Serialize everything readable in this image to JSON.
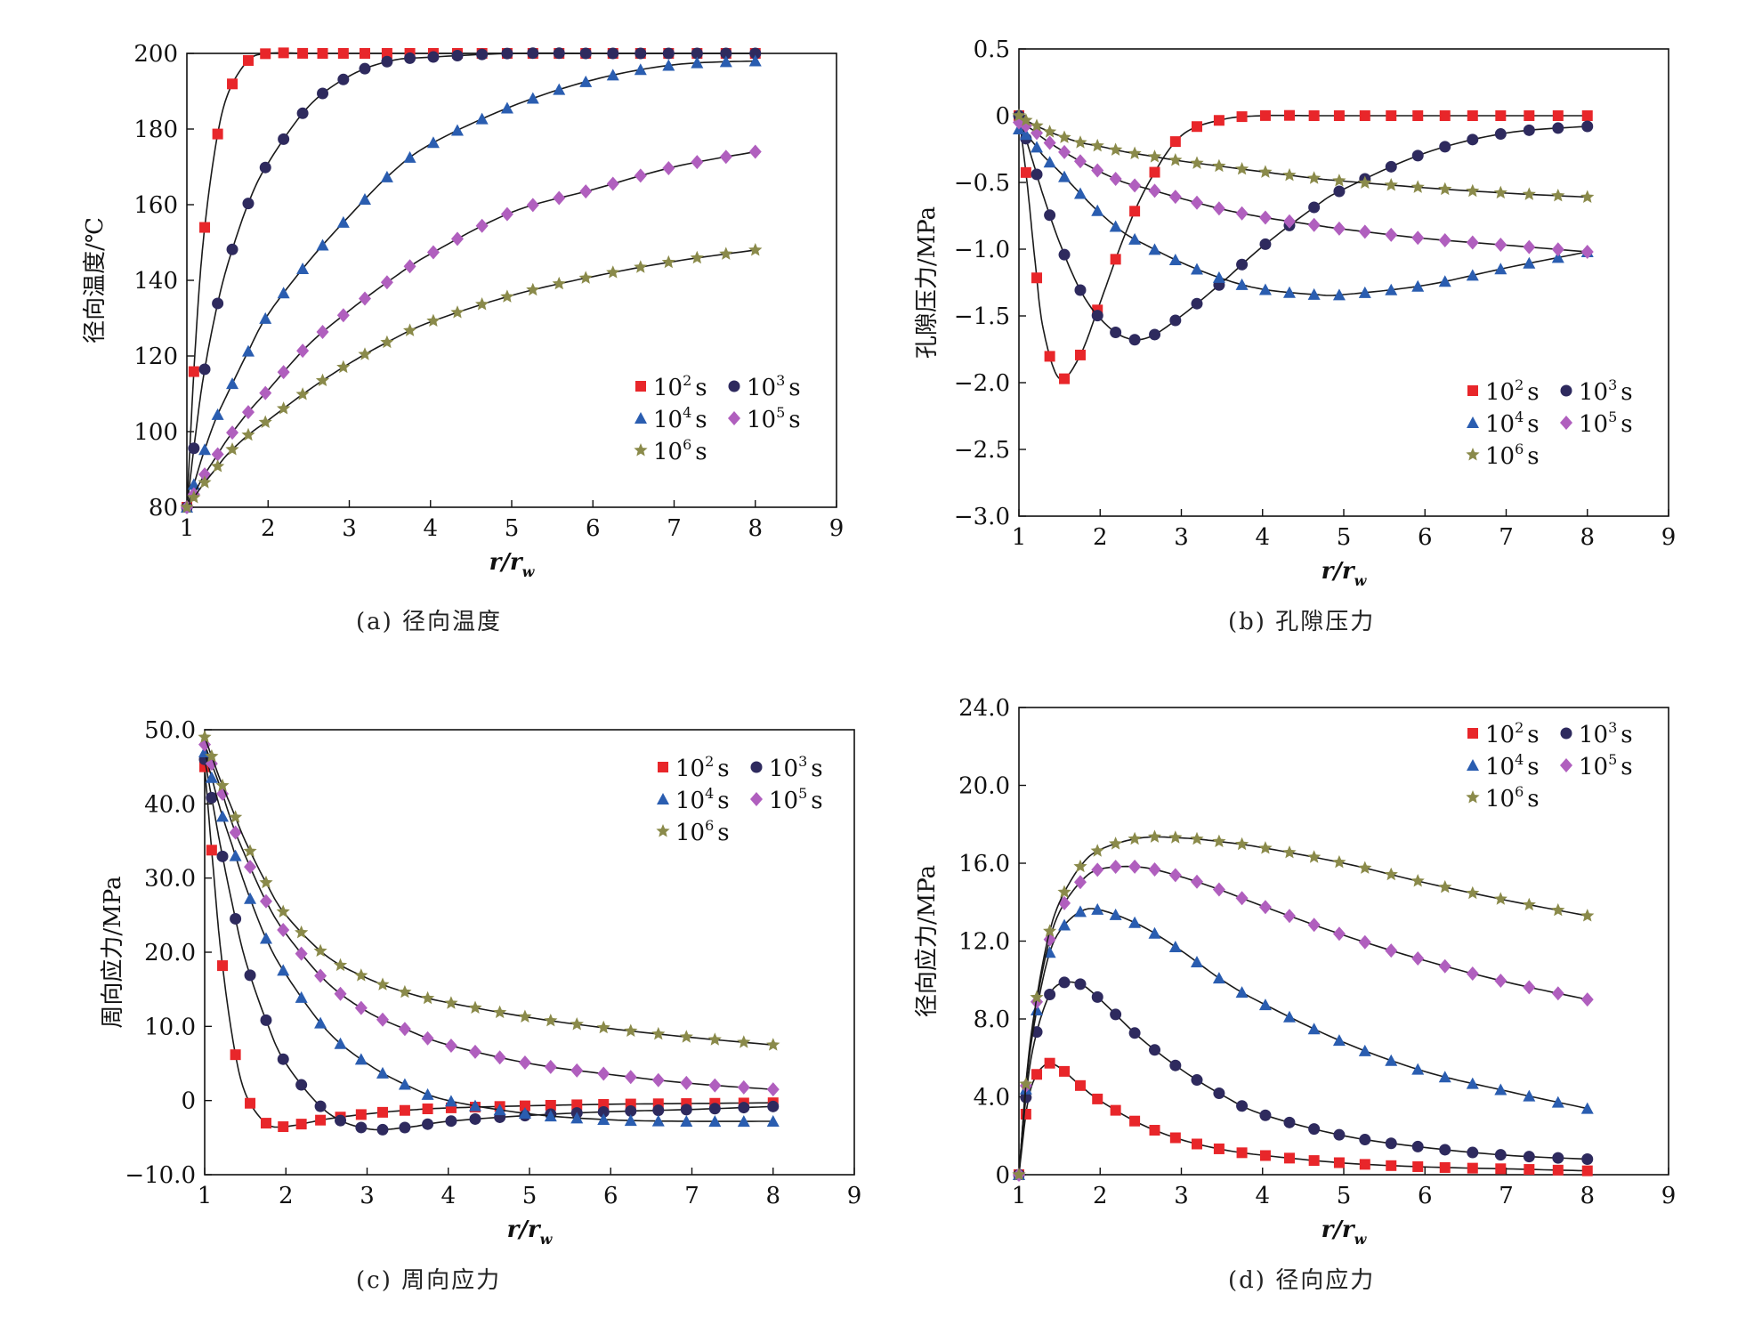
{
  "captions": {
    "a": "(a) 径向温度",
    "b": "(b) 孔隙压力",
    "c": "(c) 周向应力",
    "d": "(d) 径向应力"
  },
  "legend_labels": {
    "s1": {
      "base": "10",
      "sup": "2",
      "unit": "s"
    },
    "s2": {
      "base": "10",
      "sup": "3",
      "unit": "s"
    },
    "s3": {
      "base": "10",
      "sup": "4",
      "unit": "s"
    },
    "s4": {
      "base": "10",
      "sup": "5",
      "unit": "s"
    },
    "s5": {
      "base": "10",
      "sup": "6",
      "unit": "s"
    }
  },
  "series_style": [
    {
      "color": "#e8262a",
      "marker": "square"
    },
    {
      "color": "#2e2a5e",
      "marker": "circle"
    },
    {
      "color": "#2a5db0",
      "marker": "triangle"
    },
    {
      "color": "#b05fbe",
      "marker": "diamond"
    },
    {
      "color": "#8a8a4a",
      "marker": "star"
    }
  ],
  "chart_data": [
    {
      "id": "a",
      "type": "line",
      "xlabel": "r/r_w",
      "ylabel": "径向温度/℃",
      "xlim": [
        1,
        9
      ],
      "ylim": [
        80,
        200
      ],
      "xticks": [
        "1",
        "2",
        "3",
        "4",
        "5",
        "6",
        "7",
        "8",
        "9"
      ],
      "yticks": [
        "80",
        "100",
        "120",
        "140",
        "160",
        "180",
        "200"
      ],
      "legend_position": "bottom-right",
      "x": [
        1.0,
        1.1,
        1.2,
        1.35,
        1.5,
        1.75,
        2.0,
        2.5,
        3.0,
        3.5,
        4.0,
        5.0,
        6.0,
        7.0,
        8.0
      ],
      "series": [
        {
          "name": "10^2 s",
          "values": [
            80,
            121,
            150,
            175,
            189,
            198,
            200,
            200,
            200,
            200,
            200,
            200,
            200,
            200,
            200
          ]
        },
        {
          "name": "10^3 s",
          "values": [
            80,
            98,
            114,
            131,
            144,
            160,
            171,
            186,
            194,
            198,
            199,
            200,
            200,
            200,
            200
          ]
        },
        {
          "name": "10^4 s",
          "values": [
            80,
            87,
            94,
            103,
            110,
            121,
            131,
            145,
            157,
            168,
            176,
            186,
            193,
            197,
            198
          ]
        },
        {
          "name": "10^5 s",
          "values": [
            80,
            84,
            88,
            93,
            98,
            105,
            111,
            123,
            132,
            140,
            147,
            158,
            164,
            170,
            174
          ]
        },
        {
          "name": "10^6 s",
          "values": [
            80,
            83,
            86,
            90,
            94,
            99,
            103,
            111,
            118,
            124,
            129,
            136,
            141,
            145,
            148
          ]
        }
      ]
    },
    {
      "id": "b",
      "type": "line",
      "xlabel": "r/r_w",
      "ylabel": "孔隙压力/MPa",
      "xlim": [
        1,
        9
      ],
      "ylim": [
        -3.0,
        0.5
      ],
      "xticks": [
        "1",
        "2",
        "3",
        "4",
        "5",
        "6",
        "7",
        "8",
        "9"
      ],
      "yticks": [
        "−3.0",
        "−2.5",
        "−2.0",
        "−1.5",
        "−1.0",
        "−0.5",
        "0",
        "0.5"
      ],
      "legend_position": "bottom-right",
      "x": [
        1.0,
        1.1,
        1.2,
        1.3,
        1.5,
        1.75,
        2.0,
        2.3,
        2.6,
        3.0,
        3.5,
        4.0,
        4.65,
        5.0,
        6.0,
        7.0,
        8.0
      ],
      "series": [
        {
          "name": "10^2 s",
          "values": [
            0.0,
            -0.5,
            -1.1,
            -1.6,
            -1.97,
            -1.8,
            -1.4,
            -0.9,
            -0.5,
            -0.15,
            -0.03,
            0,
            0,
            0,
            0,
            0,
            0
          ]
        },
        {
          "name": "10^3 s",
          "values": [
            0.0,
            -0.2,
            -0.4,
            -0.6,
            -0.95,
            -1.3,
            -1.52,
            -1.66,
            -1.66,
            -1.5,
            -1.25,
            -0.98,
            -0.68,
            -0.55,
            -0.28,
            -0.13,
            -0.08
          ]
        },
        {
          "name": "10^4 s",
          "values": [
            -0.1,
            -0.15,
            -0.22,
            -0.3,
            -0.42,
            -0.58,
            -0.73,
            -0.88,
            -0.98,
            -1.1,
            -1.22,
            -1.3,
            -1.34,
            -1.34,
            -1.27,
            -1.14,
            -1.02
          ]
        },
        {
          "name": "10^5 s",
          "values": [
            -0.05,
            -0.08,
            -0.12,
            -0.17,
            -0.25,
            -0.34,
            -0.42,
            -0.5,
            -0.55,
            -0.62,
            -0.7,
            -0.76,
            -0.82,
            -0.85,
            -0.92,
            -0.97,
            -1.02
          ]
        },
        {
          "name": "10^6 s",
          "values": [
            0.0,
            -0.04,
            -0.07,
            -0.1,
            -0.15,
            -0.2,
            -0.23,
            -0.27,
            -0.3,
            -0.34,
            -0.38,
            -0.42,
            -0.47,
            -0.49,
            -0.54,
            -0.58,
            -0.61
          ]
        }
      ]
    },
    {
      "id": "c",
      "type": "line",
      "xlabel": "r/r_w",
      "ylabel": "周向应力/MPa",
      "xlim": [
        1,
        9
      ],
      "ylim": [
        -10,
        50
      ],
      "xticks": [
        "1",
        "2",
        "3",
        "4",
        "5",
        "6",
        "7",
        "8",
        "9"
      ],
      "yticks": [
        "−10.0",
        "0",
        "10.0",
        "20.0",
        "30.0",
        "40.0",
        "50.0"
      ],
      "legend_position": "top-right",
      "x": [
        1.0,
        1.1,
        1.2,
        1.35,
        1.5,
        1.75,
        2.0,
        2.5,
        3.0,
        3.5,
        4.0,
        5.0,
        6.0,
        7.0,
        8.0
      ],
      "series": [
        {
          "name": "10^2 s",
          "values": [
            45,
            32,
            20,
            8,
            1,
            -3,
            -3.5,
            -2.5,
            -1.8,
            -1.3,
            -1.0,
            -0.7,
            -0.5,
            -0.4,
            -0.3
          ]
        },
        {
          "name": "10^3 s",
          "values": [
            46,
            40,
            34,
            26,
            19,
            11,
            5,
            -1.5,
            -3.8,
            -3.6,
            -2.8,
            -2.0,
            -1.5,
            -1.2,
            -0.8
          ]
        },
        {
          "name": "10^4 s",
          "values": [
            47,
            43,
            39,
            34,
            29,
            22,
            17,
            9.5,
            5,
            2,
            0,
            -1.8,
            -2.6,
            -2.8,
            -2.8
          ]
        },
        {
          "name": "10^5 s",
          "values": [
            48,
            45,
            42,
            37,
            33,
            27,
            22.5,
            16,
            12,
            9.5,
            7.5,
            5,
            3.5,
            2.3,
            1.5
          ]
        },
        {
          "name": "10^6 s",
          "values": [
            49,
            46,
            43,
            39,
            35,
            29.5,
            25,
            19.5,
            16.5,
            14.5,
            13.2,
            11.2,
            9.7,
            8.5,
            7.5
          ]
        }
      ]
    },
    {
      "id": "d",
      "type": "line",
      "xlabel": "r/r_w",
      "ylabel": "径向应力/MPa",
      "xlim": [
        1,
        9
      ],
      "ylim": [
        0,
        24
      ],
      "xticks": [
        "1",
        "2",
        "3",
        "4",
        "5",
        "6",
        "7",
        "8",
        "9"
      ],
      "yticks": [
        "0",
        "4.0",
        "8.0",
        "12.0",
        "16.0",
        "20.0",
        "24.0"
      ],
      "legend_position": "top-right",
      "x": [
        1.0,
        1.1,
        1.2,
        1.35,
        1.5,
        1.75,
        2.0,
        2.5,
        3.0,
        3.5,
        4.0,
        5.0,
        6.0,
        7.0,
        8.0
      ],
      "series": [
        {
          "name": "10^2 s",
          "values": [
            0,
            3.5,
            5.0,
            5.7,
            5.5,
            4.6,
            3.8,
            2.6,
            1.8,
            1.3,
            1.0,
            0.6,
            0.4,
            0.3,
            0.2
          ]
        },
        {
          "name": "10^3 s",
          "values": [
            0,
            4.5,
            7.0,
            9.0,
            9.8,
            9.8,
            9.0,
            7.0,
            5.4,
            4.1,
            3.1,
            2.0,
            1.4,
            1.0,
            0.8
          ]
        },
        {
          "name": "10^4 s",
          "values": [
            0,
            5.0,
            8.0,
            11.0,
            12.5,
            13.5,
            13.6,
            12.8,
            11.5,
            10.0,
            8.8,
            6.8,
            5.3,
            4.3,
            3.4
          ]
        },
        {
          "name": "10^5 s",
          "values": [
            0,
            5.2,
            8.4,
            11.6,
            13.5,
            15.0,
            15.7,
            15.8,
            15.3,
            14.6,
            13.8,
            12.3,
            11.0,
            9.9,
            9.0
          ]
        },
        {
          "name": "10^6 s",
          "values": [
            0,
            5.3,
            8.6,
            12.0,
            14.0,
            15.8,
            16.7,
            17.3,
            17.3,
            17.1,
            16.8,
            16.0,
            15.0,
            14.1,
            13.3
          ]
        }
      ]
    }
  ]
}
